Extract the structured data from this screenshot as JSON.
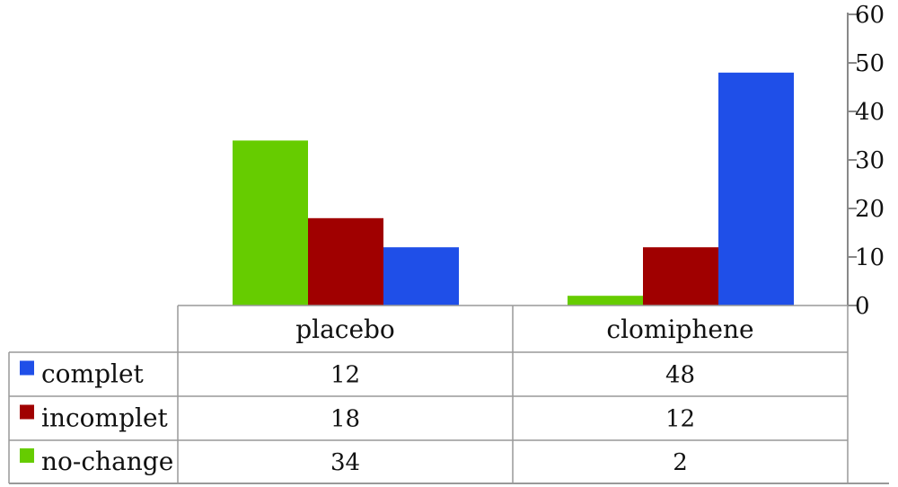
{
  "chart_data": {
    "type": "bar",
    "categories": [
      "placebo",
      "clomiphene"
    ],
    "series": [
      {
        "name": "no-change",
        "values": [
          34,
          2
        ],
        "color": "#66cc00"
      },
      {
        "name": "incomplet",
        "values": [
          18,
          12
        ],
        "color": "#a00000"
      },
      {
        "name": "complet",
        "values": [
          12,
          48
        ],
        "color": "#1f4fe8"
      }
    ],
    "table_rows": [
      {
        "name": "complet",
        "values": [
          "12",
          "48"
        ],
        "color": "#1f4fe8"
      },
      {
        "name": "incomplet",
        "values": [
          "18",
          "12"
        ],
        "color": "#a00000"
      },
      {
        "name": "no-change",
        "values": [
          "34",
          "2"
        ],
        "color": "#66cc00"
      }
    ],
    "y_ticks": [
      "0",
      "10",
      "20",
      "30",
      "40",
      "50",
      "60"
    ],
    "ylim": [
      0,
      60
    ],
    "y_axis_side": "right",
    "grid": false,
    "legend": "data-table"
  }
}
